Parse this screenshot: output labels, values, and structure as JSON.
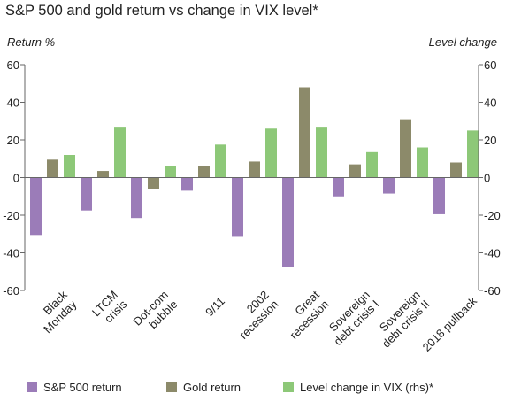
{
  "chart_data": {
    "type": "bar",
    "title": "S&P 500 and gold return vs change in VIX level*",
    "ylabel_left": "Return %",
    "ylabel_right": "Level change",
    "ylim": [
      -60,
      60
    ],
    "yticks": [
      60,
      40,
      20,
      0,
      -20,
      -40,
      -60
    ],
    "categories": [
      [
        "Black",
        "Monday"
      ],
      [
        "LTCM",
        "crisis"
      ],
      [
        "Dot-com",
        "bubble"
      ],
      [
        "9/11"
      ],
      [
        "2002",
        "recession"
      ],
      [
        "Great",
        "recession"
      ],
      [
        "Sovereign",
        "debt crisis I"
      ],
      [
        "Sovereign",
        "debt crisis II"
      ],
      [
        "2018 pullback"
      ]
    ],
    "series": [
      {
        "name": "S&P 500 return",
        "color": "#9b7cb8",
        "values": [
          -30.5,
          -17.5,
          -21.5,
          -7,
          -31.5,
          -47.5,
          -10,
          -8.5,
          -19.5
        ]
      },
      {
        "name": "Gold return",
        "color": "#8c8a6a",
        "values": [
          9.5,
          3.5,
          -6,
          6,
          8.5,
          48,
          7,
          31,
          8
        ]
      },
      {
        "name": "Level change in VIX (rhs)*",
        "color": "#8dc878",
        "values": [
          12,
          27,
          6,
          17.5,
          26,
          27,
          13.5,
          16,
          25
        ]
      }
    ],
    "legend_position": "bottom"
  }
}
